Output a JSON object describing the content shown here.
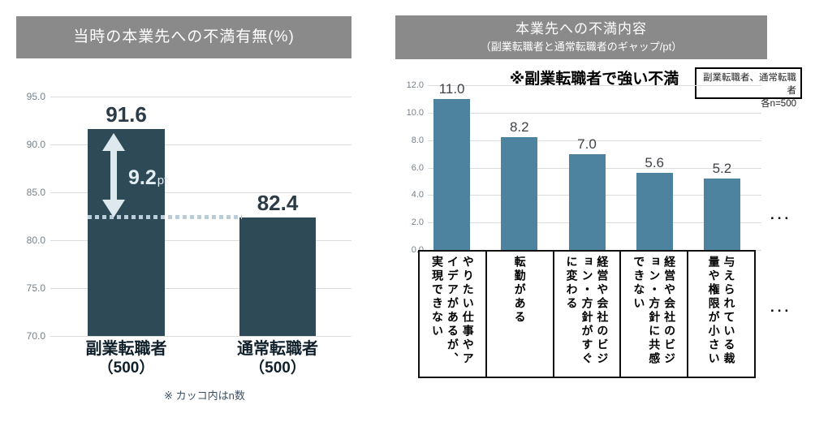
{
  "colors": {
    "banner_bg": "#8a8a8a",
    "left_bar": "#2e4a56",
    "right_bar": "#4e83a0",
    "gridline": "#dcdcdc",
    "dotted_reference_line": "#b8cdd8",
    "gap_annotation": "#e3eef3"
  },
  "left_panel": {
    "title": "当時の本業先への不満有無(%)",
    "footnote": "※ カッコ内はn数",
    "gap_value": "9.2",
    "gap_unit": "pt"
  },
  "right_panel": {
    "title": "本業先への不満内容",
    "subtitle": "（副業転職者と通常転職者のギャップ/pt）",
    "headline": "※副業転職者で強い不満",
    "sample_line1": "副業転職者、通常転職者",
    "sample_line2": "各n=500",
    "ellipsis": "..."
  },
  "chart_data": [
    {
      "id": "dissatisfaction-presence",
      "type": "bar",
      "title": "当時の本業先への不満有無(%)",
      "categories": [
        "副業転職者",
        "通常転職者"
      ],
      "category_sublabels": [
        "（500）",
        "（500）"
      ],
      "values": [
        91.6,
        82.4
      ],
      "value_labels": [
        "91.6",
        "82.4"
      ],
      "ylim": [
        70.0,
        95.0
      ],
      "yticks": [
        "95.0",
        "90.0",
        "85.0",
        "80.0",
        "75.0",
        "70.0"
      ],
      "grid": true,
      "legend": "none",
      "annotations": {
        "gap_label": "9.2pt",
        "dotted_reference_value": 82.4
      },
      "footnote": "※ カッコ内はn数"
    },
    {
      "id": "dissatisfaction-content-gap",
      "type": "bar",
      "title": "本業先への不満内容（副業転職者と通常転職者のギャップ/pt）",
      "note": "※副業転職者で強い不満",
      "sample_note": "副業転職者、通常転職者 各n=500",
      "categories": [
        "やりたい仕事やアイデアがあるが、実現できない",
        "転勤がある",
        "経営や会社のビジョン・方針がすぐに変わる",
        "経営や会社のビジョン・方針に共感できない",
        "与えられている裁量や権限が小さい"
      ],
      "values": [
        11.0,
        8.2,
        7.0,
        5.6,
        5.2
      ],
      "value_labels": [
        "11.0",
        "8.2",
        "7.0",
        "5.6",
        "5.2"
      ],
      "ylim": [
        0.0,
        12.0
      ],
      "yticks": [
        "12.0",
        "10.0",
        "8.0",
        "6.0",
        "4.0",
        "2.0",
        "0.0"
      ],
      "grid": true,
      "legend": "none",
      "truncated_with_ellipsis": true
    }
  ]
}
